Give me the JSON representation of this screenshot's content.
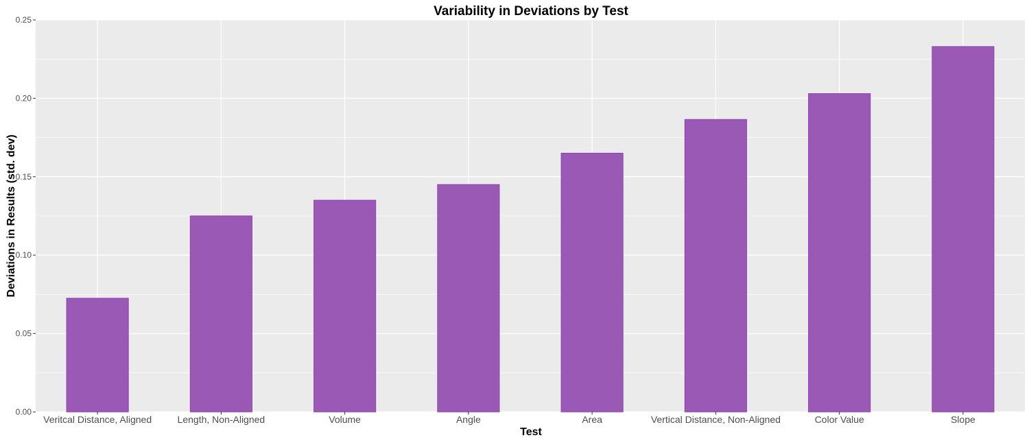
{
  "chart_data": {
    "type": "bar",
    "title": "Variability in Deviations by Test",
    "xlabel": "Test",
    "ylabel": "Deviations in Results (std. dev)",
    "categories": [
      "Veritcal Distance, Aligned",
      "Length, Non-Aligned",
      "Volume",
      "Angle",
      "Area",
      "Vertical Distance, Non-Aligned",
      "Color Value",
      "Slope"
    ],
    "values": [
      0.0725,
      0.125,
      0.135,
      0.145,
      0.165,
      0.1865,
      0.203,
      0.233
    ],
    "ylim": [
      0,
      0.25
    ],
    "yticks": [
      "0.00",
      "0.05",
      "0.10",
      "0.15",
      "0.20",
      "0.25"
    ],
    "grid": true,
    "legend": "none",
    "colors": {
      "bar_fill": "#9b59b6",
      "bar_stroke": "#8e44ad",
      "panel_bg": "#ebebeb",
      "grid_major": "#ffffff"
    }
  }
}
